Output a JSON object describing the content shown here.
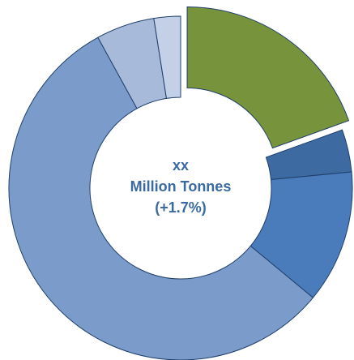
{
  "chart_data": {
    "type": "pie",
    "subtype": "donut",
    "start_angle_deg": 0,
    "exploded_slice_index": 0,
    "slices": [
      {
        "value": 19.5,
        "color": "#77933c"
      },
      {
        "value": 4.0,
        "color": "#3d6ba1"
      },
      {
        "value": 12.5,
        "color": "#4a7cbb"
      },
      {
        "value": 56.0,
        "color": "#7b9bcb"
      },
      {
        "value": 5.5,
        "color": "#a7bad9"
      },
      {
        "value": 2.5,
        "color": "#c3d0e7"
      }
    ],
    "center_label": {
      "lines": [
        "xx",
        "Million Tonnes",
        "(+1.7%)"
      ],
      "color": "#3b6aa3"
    },
    "slice_border_color": "#1f3f6b"
  }
}
